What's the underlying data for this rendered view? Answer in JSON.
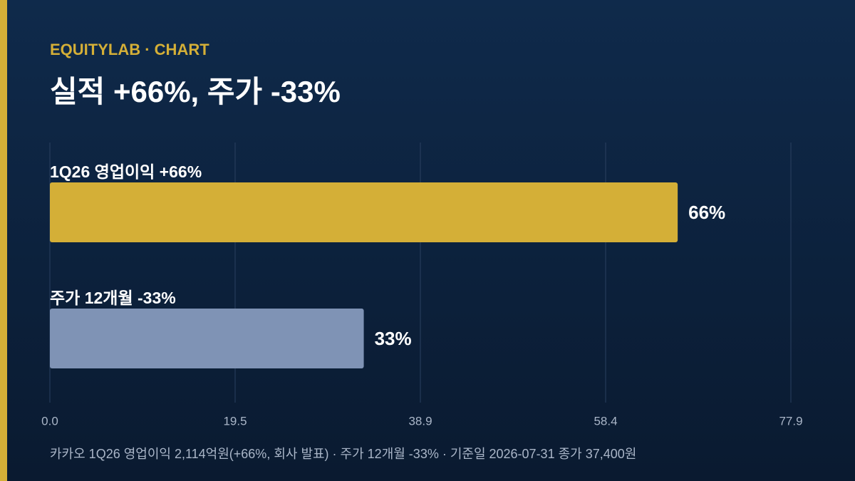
{
  "chart_data": {
    "type": "hbar",
    "kicker": "EQUITYLAB · CHART",
    "title": "실적 +66%, 주가 -33%",
    "categories": [
      "1Q26 영업이익 +66%",
      "주가 12개월 -33%"
    ],
    "values": [
      66,
      33
    ],
    "value_labels": [
      "66%",
      "33%"
    ],
    "colors": [
      "#d4af37",
      "#7f93b5"
    ],
    "xlim": [
      0,
      77.9
    ],
    "xticks": [
      {
        "value": 0,
        "label": "0.0"
      },
      {
        "value": 19.475,
        "label": "19.5"
      },
      {
        "value": 38.95,
        "label": "38.9"
      },
      {
        "value": 58.425,
        "label": "58.4"
      },
      {
        "value": 77.9,
        "label": "77.9"
      }
    ],
    "grid": true,
    "footnote": "카카오 1Q26 영업이익 2,114억원(+66%, 회사 발표) · 주가 12개월 -33% · 기준일 2026-07-31 종가 37,400원"
  }
}
